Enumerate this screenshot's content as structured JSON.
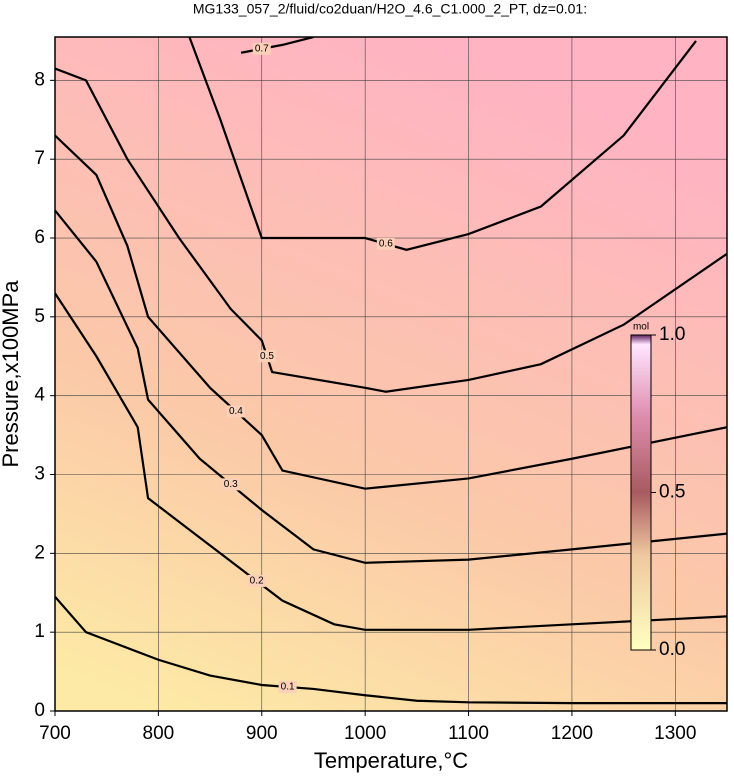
{
  "chart_data": {
    "type": "contour",
    "title": "MG133_057_2/fluid/co2duan/H2O_4.6_C1.000_2_PT, dz=0.01:",
    "xlabel": "Temperature,°C",
    "ylabel": "Pressure,x100MPa",
    "xlim": [
      700,
      1350
    ],
    "ylim": [
      0,
      8.55
    ],
    "xticks": [
      700,
      800,
      900,
      1000,
      1100,
      1200,
      1300
    ],
    "yticks": [
      0,
      1,
      2,
      3,
      4,
      5,
      6,
      7,
      8
    ],
    "grid": true,
    "colorbar": {
      "label": "mol",
      "lim": [
        0,
        1
      ],
      "ticks": [
        {
          "value": 0,
          "label": "0.0"
        },
        0.5,
        {
          "value": 1,
          "label": "1.0"
        }
      ]
    },
    "series": [
      {
        "level": 0.1,
        "x": [
          700,
          730,
          760,
          800,
          850,
          900,
          950,
          1000,
          1050,
          1100,
          1200,
          1350
        ],
        "y": [
          1.45,
          1.0,
          0.85,
          0.65,
          0.45,
          0.33,
          0.28,
          0.2,
          0.13,
          0.11,
          0.1,
          0.1
        ]
      },
      {
        "level": 0.2,
        "x": [
          700,
          740,
          780,
          790,
          830,
          870,
          920,
          970,
          1000,
          1100,
          1200,
          1350
        ],
        "y": [
          5.3,
          4.5,
          3.6,
          2.7,
          2.3,
          1.9,
          1.4,
          1.1,
          1.03,
          1.03,
          1.1,
          1.2
        ]
      },
      {
        "level": 0.3,
        "x": [
          700,
          740,
          780,
          790,
          840,
          900,
          950,
          1000,
          1100,
          1200,
          1350
        ],
        "y": [
          6.35,
          5.7,
          4.6,
          3.95,
          3.2,
          2.55,
          2.05,
          1.88,
          1.92,
          2.05,
          2.25
        ]
      },
      {
        "level": 0.4,
        "x": [
          700,
          740,
          770,
          790,
          850,
          900,
          920,
          1000,
          1100,
          1200,
          1350
        ],
        "y": [
          7.3,
          6.8,
          5.9,
          5.0,
          4.1,
          3.5,
          3.05,
          2.82,
          2.95,
          3.2,
          3.6
        ]
      },
      {
        "level": 0.5,
        "x": [
          700,
          730,
          770,
          820,
          870,
          900,
          910,
          1000,
          1020,
          1100,
          1170,
          1250,
          1350
        ],
        "y": [
          8.15,
          8.0,
          7.0,
          6.0,
          5.1,
          4.7,
          4.3,
          4.1,
          4.05,
          4.2,
          4.4,
          4.9,
          5.8
        ]
      },
      {
        "level": 0.6,
        "x": [
          830,
          860,
          900,
          1000,
          1040,
          1100,
          1170,
          1250,
          1320
        ],
        "y": [
          8.55,
          7.5,
          6.0,
          6.0,
          5.85,
          6.05,
          6.4,
          7.3,
          8.5
        ]
      },
      {
        "level": 0.7,
        "x": [
          880,
          920,
          950
        ],
        "y": [
          8.35,
          8.45,
          8.55
        ]
      }
    ]
  }
}
